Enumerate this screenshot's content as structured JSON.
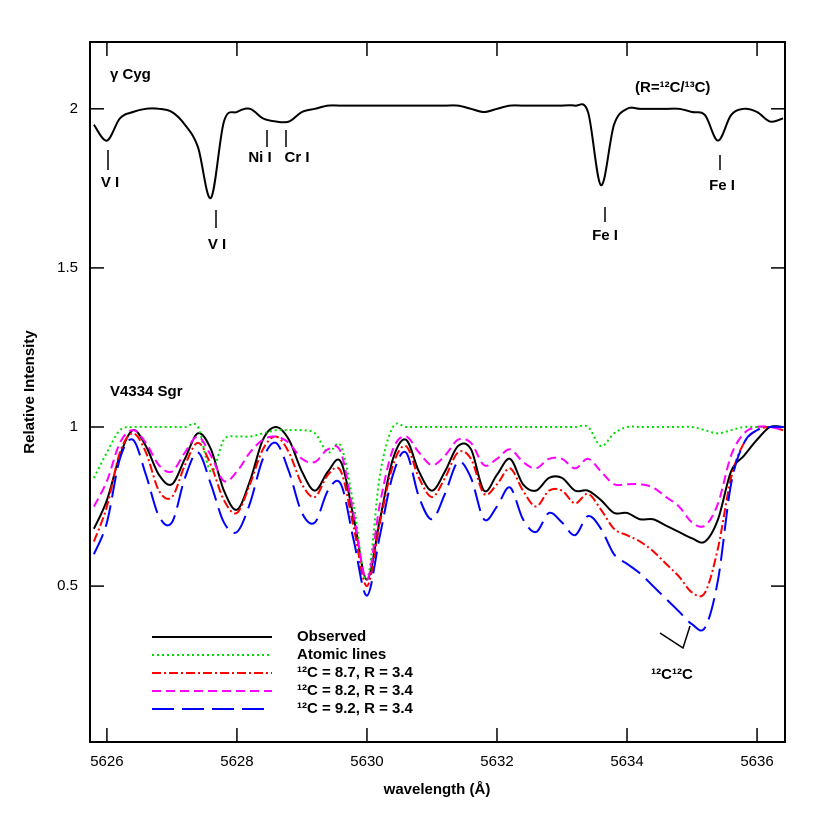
{
  "chart_data": {
    "type": "line",
    "x_label": "wavelength (Å)",
    "y_label": "Relative Intensity",
    "xlim": [
      5625.74,
      5636.43
    ],
    "ylim": [
      0.01,
      2.21
    ],
    "xticks": [
      5626,
      5628,
      5630,
      5632,
      5634,
      5636
    ],
    "yticks": [
      0.5,
      1,
      1.5,
      2
    ],
    "legend": "lower left",
    "annotations": [
      "γ Cyg",
      "(R=¹²C/¹³C)",
      "V I",
      "V I",
      "Ni I",
      "Cr I",
      "Fe I",
      "Fe I",
      "V4334 Sgr",
      "¹²C¹²C"
    ],
    "x": [
      5625.8,
      5626.0,
      5626.2,
      5626.4,
      5626.6,
      5626.8,
      5627.0,
      5627.2,
      5627.4,
      5627.6,
      5627.8,
      5628.0,
      5628.2,
      5628.4,
      5628.6,
      5628.8,
      5629.0,
      5629.2,
      5629.4,
      5629.6,
      5629.8,
      5630.0,
      5630.2,
      5630.4,
      5630.6,
      5630.8,
      5631.0,
      5631.2,
      5631.4,
      5631.6,
      5631.8,
      5632.0,
      5632.2,
      5632.4,
      5632.6,
      5632.8,
      5633.0,
      5633.2,
      5633.4,
      5633.6,
      5633.8,
      5634.0,
      5634.2,
      5634.4,
      5634.6,
      5634.8,
      5635.0,
      5635.2,
      5635.4,
      5635.6,
      5635.8,
      5636.0,
      5636.2,
      5636.4
    ],
    "reference_spectrum": {
      "color": "#000000",
      "linestyle": "solid",
      "values": [
        1.95,
        1.9,
        1.97,
        1.99,
        2.0,
        2.0,
        1.99,
        1.95,
        1.88,
        1.72,
        1.96,
        1.99,
        2.0,
        1.97,
        1.96,
        1.96,
        1.99,
        2.0,
        2.01,
        2.01,
        2.01,
        2.01,
        2.01,
        2.01,
        2.01,
        2.01,
        2.01,
        2.01,
        2.01,
        2.0,
        1.99,
        2.0,
        2.01,
        2.01,
        2.01,
        2.01,
        2.01,
        2.01,
        1.99,
        1.76,
        1.95,
        2.0,
        2.0,
        2.0,
        2.0,
        2.0,
        1.99,
        1.98,
        1.9,
        1.98,
        2.0,
        1.99,
        1.96,
        1.97
      ]
    },
    "series": [
      {
        "name": "Observed",
        "color": "#000000",
        "linestyle": "solid",
        "values": [
          0.68,
          0.77,
          0.91,
          0.99,
          0.94,
          0.85,
          0.82,
          0.9,
          0.98,
          0.93,
          0.8,
          0.74,
          0.83,
          0.96,
          1.0,
          0.96,
          0.86,
          0.8,
          0.86,
          0.89,
          0.71,
          0.52,
          0.71,
          0.9,
          0.96,
          0.86,
          0.8,
          0.86,
          0.94,
          0.93,
          0.8,
          0.85,
          0.9,
          0.82,
          0.8,
          0.84,
          0.84,
          0.8,
          0.8,
          0.77,
          0.73,
          0.73,
          0.71,
          0.71,
          0.69,
          0.67,
          0.65,
          0.64,
          0.71,
          0.86,
          0.91,
          0.96,
          1.0,
          1.0
        ]
      },
      {
        "name": "Atomic lines",
        "color": "#00dd00",
        "linestyle": "dotted",
        "values": [
          0.84,
          0.92,
          0.99,
          1.0,
          1.0,
          1.0,
          1.0,
          1.0,
          1.0,
          0.86,
          0.96,
          0.97,
          0.97,
          0.98,
          0.99,
          0.99,
          0.99,
          0.98,
          0.92,
          0.94,
          0.75,
          0.52,
          0.85,
          1.0,
          1.0,
          1.0,
          1.0,
          1.0,
          1.0,
          1.0,
          1.0,
          1.0,
          1.0,
          1.0,
          1.0,
          1.0,
          1.0,
          1.0,
          1.0,
          0.94,
          0.98,
          1.0,
          1.0,
          1.0,
          1.0,
          1.0,
          1.0,
          0.99,
          0.98,
          0.99,
          1.0,
          1.0,
          1.0,
          1.0
        ]
      },
      {
        "name": "¹²C = 8.7,  R = 3.4",
        "color": "#ff0000",
        "linestyle": "dashdot",
        "values": [
          0.64,
          0.75,
          0.92,
          0.98,
          0.92,
          0.8,
          0.78,
          0.88,
          0.95,
          0.88,
          0.77,
          0.73,
          0.82,
          0.93,
          0.97,
          0.92,
          0.82,
          0.78,
          0.85,
          0.86,
          0.68,
          0.5,
          0.7,
          0.88,
          0.94,
          0.84,
          0.78,
          0.84,
          0.92,
          0.9,
          0.79,
          0.82,
          0.87,
          0.8,
          0.75,
          0.8,
          0.8,
          0.76,
          0.79,
          0.74,
          0.68,
          0.66,
          0.64,
          0.61,
          0.57,
          0.53,
          0.48,
          0.48,
          0.62,
          0.84,
          0.95,
          0.99,
          1.0,
          0.99
        ]
      },
      {
        "name": "¹²C = 8.2,  R = 3.4",
        "color": "#ff00ff",
        "linestyle": "dashed",
        "values": [
          0.75,
          0.83,
          0.95,
          0.99,
          0.95,
          0.88,
          0.86,
          0.92,
          0.97,
          0.91,
          0.83,
          0.86,
          0.92,
          0.96,
          0.97,
          0.95,
          0.9,
          0.89,
          0.93,
          0.92,
          0.72,
          0.52,
          0.76,
          0.93,
          0.97,
          0.92,
          0.88,
          0.91,
          0.96,
          0.95,
          0.88,
          0.9,
          0.93,
          0.89,
          0.87,
          0.9,
          0.9,
          0.87,
          0.9,
          0.86,
          0.82,
          0.82,
          0.82,
          0.81,
          0.78,
          0.75,
          0.7,
          0.69,
          0.76,
          0.91,
          0.98,
          1.0,
          1.0,
          0.99
        ]
      },
      {
        "name": "¹²C = 9.2,  R = 3.4",
        "color": "#0000ff",
        "linestyle": "longdash",
        "values": [
          0.6,
          0.7,
          0.9,
          0.96,
          0.85,
          0.72,
          0.7,
          0.84,
          0.92,
          0.82,
          0.7,
          0.67,
          0.76,
          0.9,
          0.95,
          0.86,
          0.73,
          0.7,
          0.8,
          0.82,
          0.64,
          0.47,
          0.66,
          0.85,
          0.92,
          0.78,
          0.71,
          0.79,
          0.89,
          0.84,
          0.71,
          0.75,
          0.81,
          0.71,
          0.67,
          0.73,
          0.7,
          0.66,
          0.72,
          0.68,
          0.6,
          0.57,
          0.54,
          0.5,
          0.46,
          0.42,
          0.38,
          0.37,
          0.52,
          0.82,
          0.95,
          0.99,
          1.0,
          1.0
        ]
      }
    ]
  }
}
